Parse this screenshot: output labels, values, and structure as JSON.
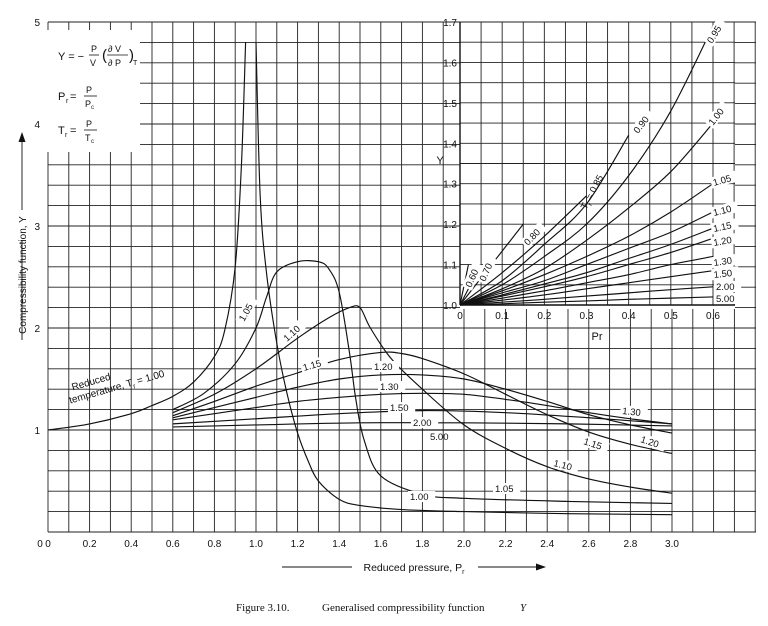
{
  "caption": {
    "figure": "Figure 3.10.",
    "text": "Generalised compressibility function",
    "symbol": "Y"
  },
  "chart_data": [
    {
      "type": "line",
      "panel": "main",
      "xlabel": "Reduced pressure, Pr",
      "ylabel": "Compressibility function, Y",
      "xlim": [
        0,
        3.0
      ],
      "ylim": [
        0,
        5
      ],
      "x_ticks": [
        "0",
        "0.2",
        "0.4",
        "0.6",
        "0.8",
        "1.0",
        "1.2",
        "1.4",
        "1.6",
        "1.8",
        "2.0",
        "2.2",
        "2.4",
        "2.6",
        "2.8",
        "3.0"
      ],
      "y_ticks": [
        "1",
        "2",
        "3",
        "4",
        "5"
      ],
      "grid": true,
      "definitions": [
        "Y = -P/V (∂V/∂P)T",
        "Pr = P/Pc",
        "Tr = P/Tc"
      ],
      "annotation": "Reduced temperature, Tr = 1.00",
      "series": [
        {
          "name": "1.00",
          "points": [
            [
              0,
              1.0
            ],
            [
              0.2,
              1.06
            ],
            [
              0.4,
              1.16
            ],
            [
              0.5,
              1.24
            ],
            [
              0.6,
              1.33
            ],
            [
              0.7,
              1.47
            ],
            [
              0.8,
              1.72
            ],
            [
              0.85,
              1.98
            ],
            [
              0.9,
              2.6
            ],
            [
              0.93,
              3.6
            ],
            [
              0.95,
              4.8
            ]
          ]
        },
        {
          "name": "1.00",
          "points": [
            [
              1.0,
              4.8
            ],
            [
              1.02,
              3.3
            ],
            [
              1.05,
              2.55
            ],
            [
              1.1,
              1.85
            ],
            [
              1.15,
              1.35
            ],
            [
              1.2,
              0.97
            ],
            [
              1.25,
              0.7
            ],
            [
              1.3,
              0.5
            ],
            [
              1.4,
              0.32
            ],
            [
              1.5,
              0.26
            ],
            [
              1.7,
              0.22
            ],
            [
              2.0,
              0.2
            ],
            [
              2.5,
              0.18
            ],
            [
              3.0,
              0.17
            ]
          ]
        },
        {
          "name": "1.05",
          "points": [
            [
              0.6,
              1.2
            ],
            [
              0.75,
              1.36
            ],
            [
              0.9,
              1.65
            ],
            [
              1.0,
              2.0
            ],
            [
              1.05,
              2.3
            ],
            [
              1.1,
              2.55
            ],
            [
              1.2,
              2.65
            ],
            [
              1.3,
              2.65
            ],
            [
              1.35,
              2.58
            ],
            [
              1.4,
              2.35
            ],
            [
              1.45,
              1.75
            ],
            [
              1.48,
              1.3
            ],
            [
              1.52,
              0.9
            ],
            [
              1.6,
              0.55
            ],
            [
              1.8,
              0.37
            ],
            [
              2.0,
              0.33
            ],
            [
              2.5,
              0.3
            ],
            [
              3.0,
              0.28
            ]
          ]
        },
        {
          "name": "1.10",
          "points": [
            [
              0.6,
              1.17
            ],
            [
              0.8,
              1.35
            ],
            [
              1.0,
              1.6
            ],
            [
              1.2,
              1.9
            ],
            [
              1.35,
              2.1
            ],
            [
              1.45,
              2.2
            ],
            [
              1.5,
              2.2
            ],
            [
              1.55,
              2.0
            ],
            [
              1.65,
              1.7
            ],
            [
              1.8,
              1.4
            ],
            [
              2.0,
              1.05
            ],
            [
              2.2,
              0.82
            ],
            [
              2.4,
              0.64
            ],
            [
              2.6,
              0.52
            ],
            [
              2.8,
              0.44
            ],
            [
              3.0,
              0.38
            ]
          ]
        },
        {
          "name": "1.15",
          "points": [
            [
              0.6,
              1.14
            ],
            [
              0.8,
              1.28
            ],
            [
              1.0,
              1.43
            ],
            [
              1.2,
              1.56
            ],
            [
              1.4,
              1.69
            ],
            [
              1.6,
              1.76
            ],
            [
              1.7,
              1.75
            ],
            [
              1.8,
              1.7
            ],
            [
              2.0,
              1.55
            ],
            [
              2.2,
              1.35
            ],
            [
              2.4,
              1.15
            ],
            [
              2.6,
              0.98
            ],
            [
              2.8,
              0.86
            ],
            [
              3.0,
              0.77
            ]
          ]
        },
        {
          "name": "1.20",
          "points": [
            [
              0.6,
              1.12
            ],
            [
              0.8,
              1.22
            ],
            [
              1.0,
              1.32
            ],
            [
              1.2,
              1.42
            ],
            [
              1.4,
              1.5
            ],
            [
              1.6,
              1.54
            ],
            [
              1.8,
              1.54
            ],
            [
              2.0,
              1.5
            ],
            [
              2.2,
              1.4
            ],
            [
              2.4,
              1.28
            ],
            [
              2.6,
              1.15
            ],
            [
              2.8,
              1.05
            ],
            [
              3.0,
              0.97
            ]
          ]
        },
        {
          "name": "1.30",
          "points": [
            [
              0.6,
              1.1
            ],
            [
              0.8,
              1.16
            ],
            [
              1.0,
              1.22
            ],
            [
              1.2,
              1.28
            ],
            [
              1.4,
              1.32
            ],
            [
              1.6,
              1.35
            ],
            [
              1.8,
              1.36
            ],
            [
              2.0,
              1.35
            ],
            [
              2.2,
              1.3
            ],
            [
              2.4,
              1.24
            ],
            [
              2.6,
              1.17
            ],
            [
              2.8,
              1.11
            ],
            [
              3.0,
              1.06
            ]
          ]
        },
        {
          "name": "1.50",
          "points": [
            [
              0.6,
              1.06
            ],
            [
              1.0,
              1.11
            ],
            [
              1.4,
              1.16
            ],
            [
              1.8,
              1.19
            ],
            [
              2.2,
              1.17
            ],
            [
              2.6,
              1.12
            ],
            [
              3.0,
              1.06
            ]
          ]
        },
        {
          "name": "2.00",
          "points": [
            [
              0.6,
              1.03
            ],
            [
              1.0,
              1.05
            ],
            [
              1.5,
              1.07
            ],
            [
              2.0,
              1.07
            ],
            [
              2.5,
              1.06
            ],
            [
              3.0,
              1.04
            ]
          ]
        },
        {
          "name": "5.00",
          "points": [
            [
              1.5,
              1.0
            ],
            [
              2.0,
              1.0
            ],
            [
              2.5,
              1.0
            ],
            [
              3.0,
              1.0
            ]
          ]
        }
      ]
    },
    {
      "type": "line",
      "panel": "inset",
      "xlabel": "Pr",
      "ylabel": "Y",
      "xlim": [
        0,
        0.6
      ],
      "ylim": [
        1.0,
        1.7
      ],
      "x_ticks": [
        "0",
        "0.1",
        "0.2",
        "0.3",
        "0.4",
        "0.5",
        "0.6"
      ],
      "y_ticks": [
        "1.0",
        "1.1",
        "1.2",
        "1.3",
        "1.4",
        "1.5",
        "1.6",
        "1.7"
      ],
      "grid": true,
      "annotation": "Tr = 0.85",
      "series": [
        {
          "name": "0.60",
          "points": [
            [
              0,
              1.0
            ],
            [
              0.02,
              1.1
            ]
          ]
        },
        {
          "name": "0.70",
          "points": [
            [
              0,
              1.0
            ],
            [
              0.05,
              1.1
            ]
          ]
        },
        {
          "name": "0.80",
          "points": [
            [
              0,
              1.0
            ],
            [
              0.15,
              1.2
            ]
          ]
        },
        {
          "name": "0.85",
          "points": [
            [
              0,
              1.0
            ],
            [
              0.1,
              1.08
            ],
            [
              0.2,
              1.17
            ],
            [
              0.3,
              1.27
            ]
          ]
        },
        {
          "name": "0.90",
          "points": [
            [
              0,
              1.0
            ],
            [
              0.1,
              1.06
            ],
            [
              0.2,
              1.15
            ],
            [
              0.3,
              1.25
            ],
            [
              0.4,
              1.42
            ]
          ]
        },
        {
          "name": "0.95",
          "points": [
            [
              0,
              1.0
            ],
            [
              0.1,
              1.05
            ],
            [
              0.2,
              1.12
            ],
            [
              0.3,
              1.2
            ],
            [
              0.4,
              1.32
            ],
            [
              0.5,
              1.48
            ],
            [
              0.6,
              1.69
            ]
          ]
        },
        {
          "name": "1.00",
          "points": [
            [
              0,
              1.0
            ],
            [
              0.1,
              1.04
            ],
            [
              0.2,
              1.09
            ],
            [
              0.3,
              1.16
            ],
            [
              0.4,
              1.24
            ],
            [
              0.5,
              1.33
            ],
            [
              0.6,
              1.45
            ]
          ]
        },
        {
          "name": "1.05",
          "points": [
            [
              0,
              1.0
            ],
            [
              0.1,
              1.035
            ],
            [
              0.2,
              1.075
            ],
            [
              0.3,
              1.12
            ],
            [
              0.4,
              1.17
            ],
            [
              0.5,
              1.23
            ],
            [
              0.6,
              1.3
            ]
          ]
        },
        {
          "name": "1.10",
          "points": [
            [
              0,
              1.0
            ],
            [
              0.1,
              1.03
            ],
            [
              0.2,
              1.06
            ],
            [
              0.3,
              1.1
            ],
            [
              0.4,
              1.14
            ],
            [
              0.5,
              1.18
            ],
            [
              0.6,
              1.23
            ]
          ]
        },
        {
          "name": "1.15",
          "points": [
            [
              0,
              1.0
            ],
            [
              0.1,
              1.025
            ],
            [
              0.2,
              1.052
            ],
            [
              0.3,
              1.08
            ],
            [
              0.4,
              1.115
            ],
            [
              0.5,
              1.15
            ],
            [
              0.6,
              1.19
            ]
          ]
        },
        {
          "name": "1.20",
          "points": [
            [
              0,
              1.0
            ],
            [
              0.1,
              1.022
            ],
            [
              0.2,
              1.045
            ],
            [
              0.3,
              1.07
            ],
            [
              0.4,
              1.1
            ],
            [
              0.5,
              1.13
            ],
            [
              0.6,
              1.165
            ]
          ]
        },
        {
          "name": "1.30",
          "points": [
            [
              0,
              1.0
            ],
            [
              0.1,
              1.017
            ],
            [
              0.2,
              1.035
            ],
            [
              0.3,
              1.055
            ],
            [
              0.4,
              1.075
            ],
            [
              0.5,
              1.1
            ],
            [
              0.6,
              1.12
            ]
          ]
        },
        {
          "name": "1.50",
          "points": [
            [
              0,
              1.0
            ],
            [
              0.1,
              1.012
            ],
            [
              0.2,
              1.025
            ],
            [
              0.3,
              1.04
            ],
            [
              0.4,
              1.055
            ],
            [
              0.5,
              1.07
            ],
            [
              0.6,
              1.085
            ]
          ]
        },
        {
          "name": "2.00",
          "points": [
            [
              0,
              1.0
            ],
            [
              0.1,
              1.007
            ],
            [
              0.2,
              1.014
            ],
            [
              0.3,
              1.022
            ],
            [
              0.4,
              1.03
            ],
            [
              0.5,
              1.038
            ],
            [
              0.6,
              1.045
            ]
          ]
        },
        {
          "name": "5.00",
          "points": [
            [
              0,
              1.0
            ],
            [
              0.1,
              1.003
            ],
            [
              0.2,
              1.007
            ],
            [
              0.3,
              1.01
            ],
            [
              0.4,
              1.014
            ],
            [
              0.5,
              1.017
            ],
            [
              0.6,
              1.02
            ]
          ]
        }
      ]
    }
  ]
}
